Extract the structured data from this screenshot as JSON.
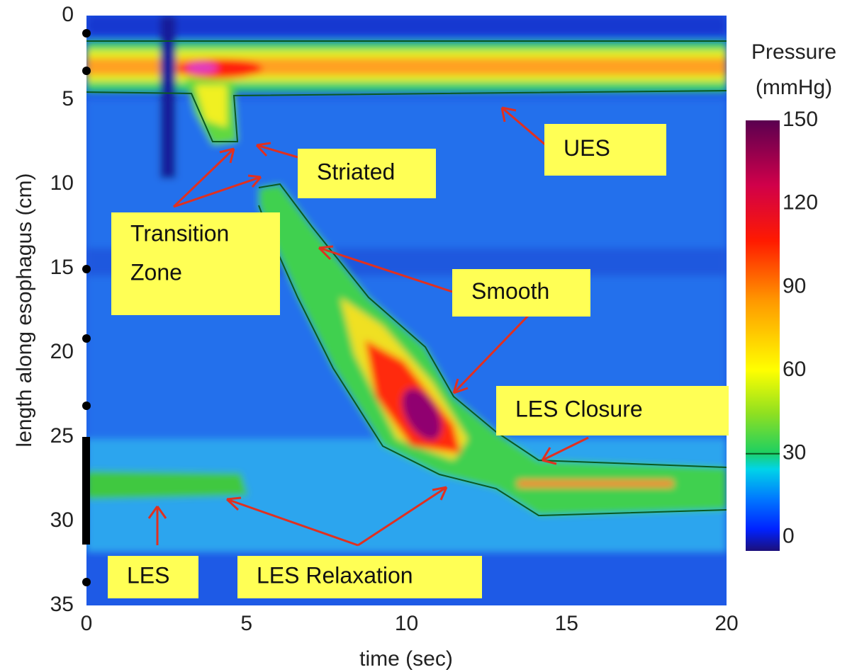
{
  "chart_data": {
    "type": "heatmap",
    "xlabel": "time (sec)",
    "ylabel": "length along esophagus (cm)",
    "xlim": [
      0,
      20
    ],
    "xticks": [
      0,
      5,
      10,
      15,
      20
    ],
    "ylim": [
      0,
      35
    ],
    "yticks": [
      0,
      5,
      10,
      15,
      20,
      25,
      30,
      35
    ],
    "y_inverted": true,
    "colorbar_title": [
      "Pressure",
      "(mmHg)"
    ],
    "clim": [
      -5,
      150
    ],
    "cticks": [
      0,
      30,
      60,
      90,
      120,
      150
    ],
    "contour_level": 30,
    "annotations": [
      [
        "UES"
      ],
      [
        "Striated"
      ],
      [
        "Transition",
        "Zone"
      ],
      [
        "Smooth"
      ],
      [
        "LES Closure"
      ],
      [
        "LES"
      ],
      [
        "LES Relaxation"
      ]
    ]
  }
}
